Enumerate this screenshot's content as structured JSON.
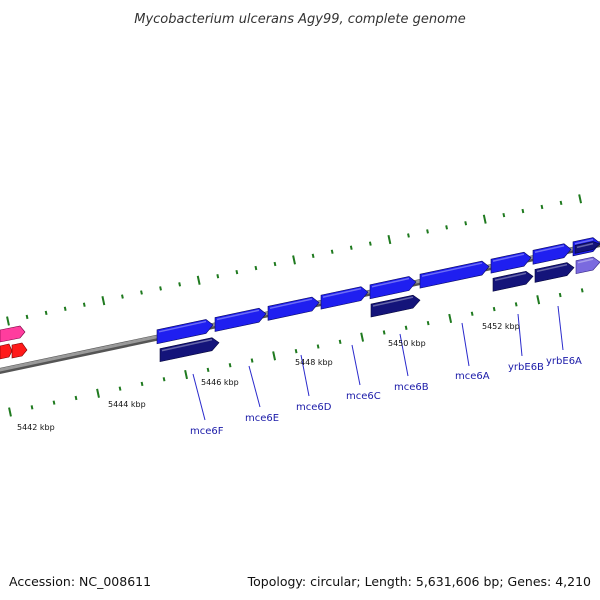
{
  "title": "Mycobacterium ulcerans Agy99, complete genome",
  "footer": {
    "accession": "Accession: NC_008611",
    "summary": "Topology: circular; Length: 5,631,606 bp; Genes: 4,210"
  },
  "colors": {
    "background": "#ffffff",
    "backbone": "#8a8a8a",
    "tick": "#1f7a1f",
    "forward_gene": "#1f1ff0",
    "reverse_gene": "#14147a",
    "light_gene": "#7a6adf",
    "pink_gene": "#ff3d9e",
    "red_gene": "#ff1a1a",
    "label_line": "#2a2acc",
    "label_text": "#1a1aa8"
  },
  "tick_labels": [
    "5442 kbp",
    "5444 kbp",
    "5446 kbp",
    "5448 kbp",
    "5450 kbp",
    "5452 kbp"
  ],
  "gene_labels": [
    "mce6F",
    "mce6E",
    "mce6D",
    "mce6C",
    "mce6B",
    "mce6A",
    "yrbE6B",
    "yrbE6A"
  ]
}
